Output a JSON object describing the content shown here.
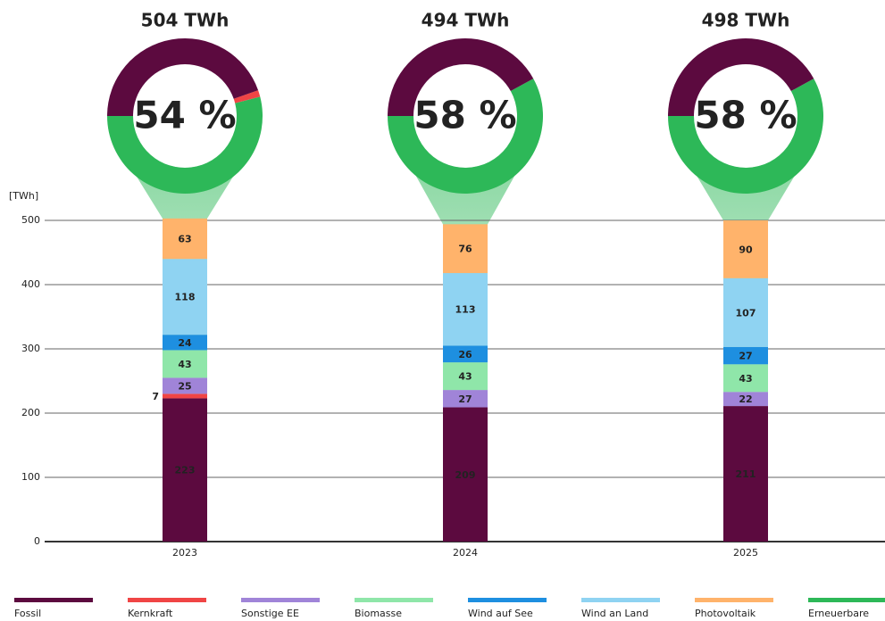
{
  "chart_data": {
    "type": "stacked_bar_donut",
    "y_label": "[TWh]",
    "categories": [
      "2023",
      "2024",
      "2025"
    ],
    "series": [
      {
        "name": "Fossil",
        "color": "#5c0a3f",
        "values": [
          223,
          209,
          211
        ]
      },
      {
        "name": "Kernkraft",
        "color": "#f04545",
        "values": [
          7,
          null,
          null
        ]
      },
      {
        "name": "Sonstige EE",
        "color": "#a084d8",
        "values": [
          25,
          27,
          22
        ]
      },
      {
        "name": "Biomasse",
        "color": "#8fe6a9",
        "values": [
          43,
          43,
          43
        ]
      },
      {
        "name": "Wind auf See",
        "color": "#1e8fe0",
        "values": [
          24,
          26,
          27
        ]
      },
      {
        "name": "Wind an Land",
        "color": "#8fd3f2",
        "values": [
          118,
          113,
          107
        ]
      },
      {
        "name": "Photovoltaik",
        "color": "#ffb36b",
        "values": [
          63,
          76,
          90
        ]
      }
    ],
    "renewable": {
      "name": "Erneuerbare",
      "color": "#2db858"
    },
    "donuts": [
      {
        "total": {
          "value": 504,
          "label": "504 TWh"
        },
        "share": {
          "value": 54,
          "label": "54 %"
        }
      },
      {
        "total": {
          "value": 494,
          "label": "494 TWh"
        },
        "share": {
          "value": 58,
          "label": "58 %"
        }
      },
      {
        "total": {
          "value": 498,
          "label": "498 TWh"
        },
        "share": {
          "value": 58,
          "label": "58 %"
        }
      }
    ],
    "ylim": [
      0,
      500
    ],
    "yticks": [
      0,
      100,
      200,
      300,
      400,
      500
    ],
    "grid": true
  }
}
